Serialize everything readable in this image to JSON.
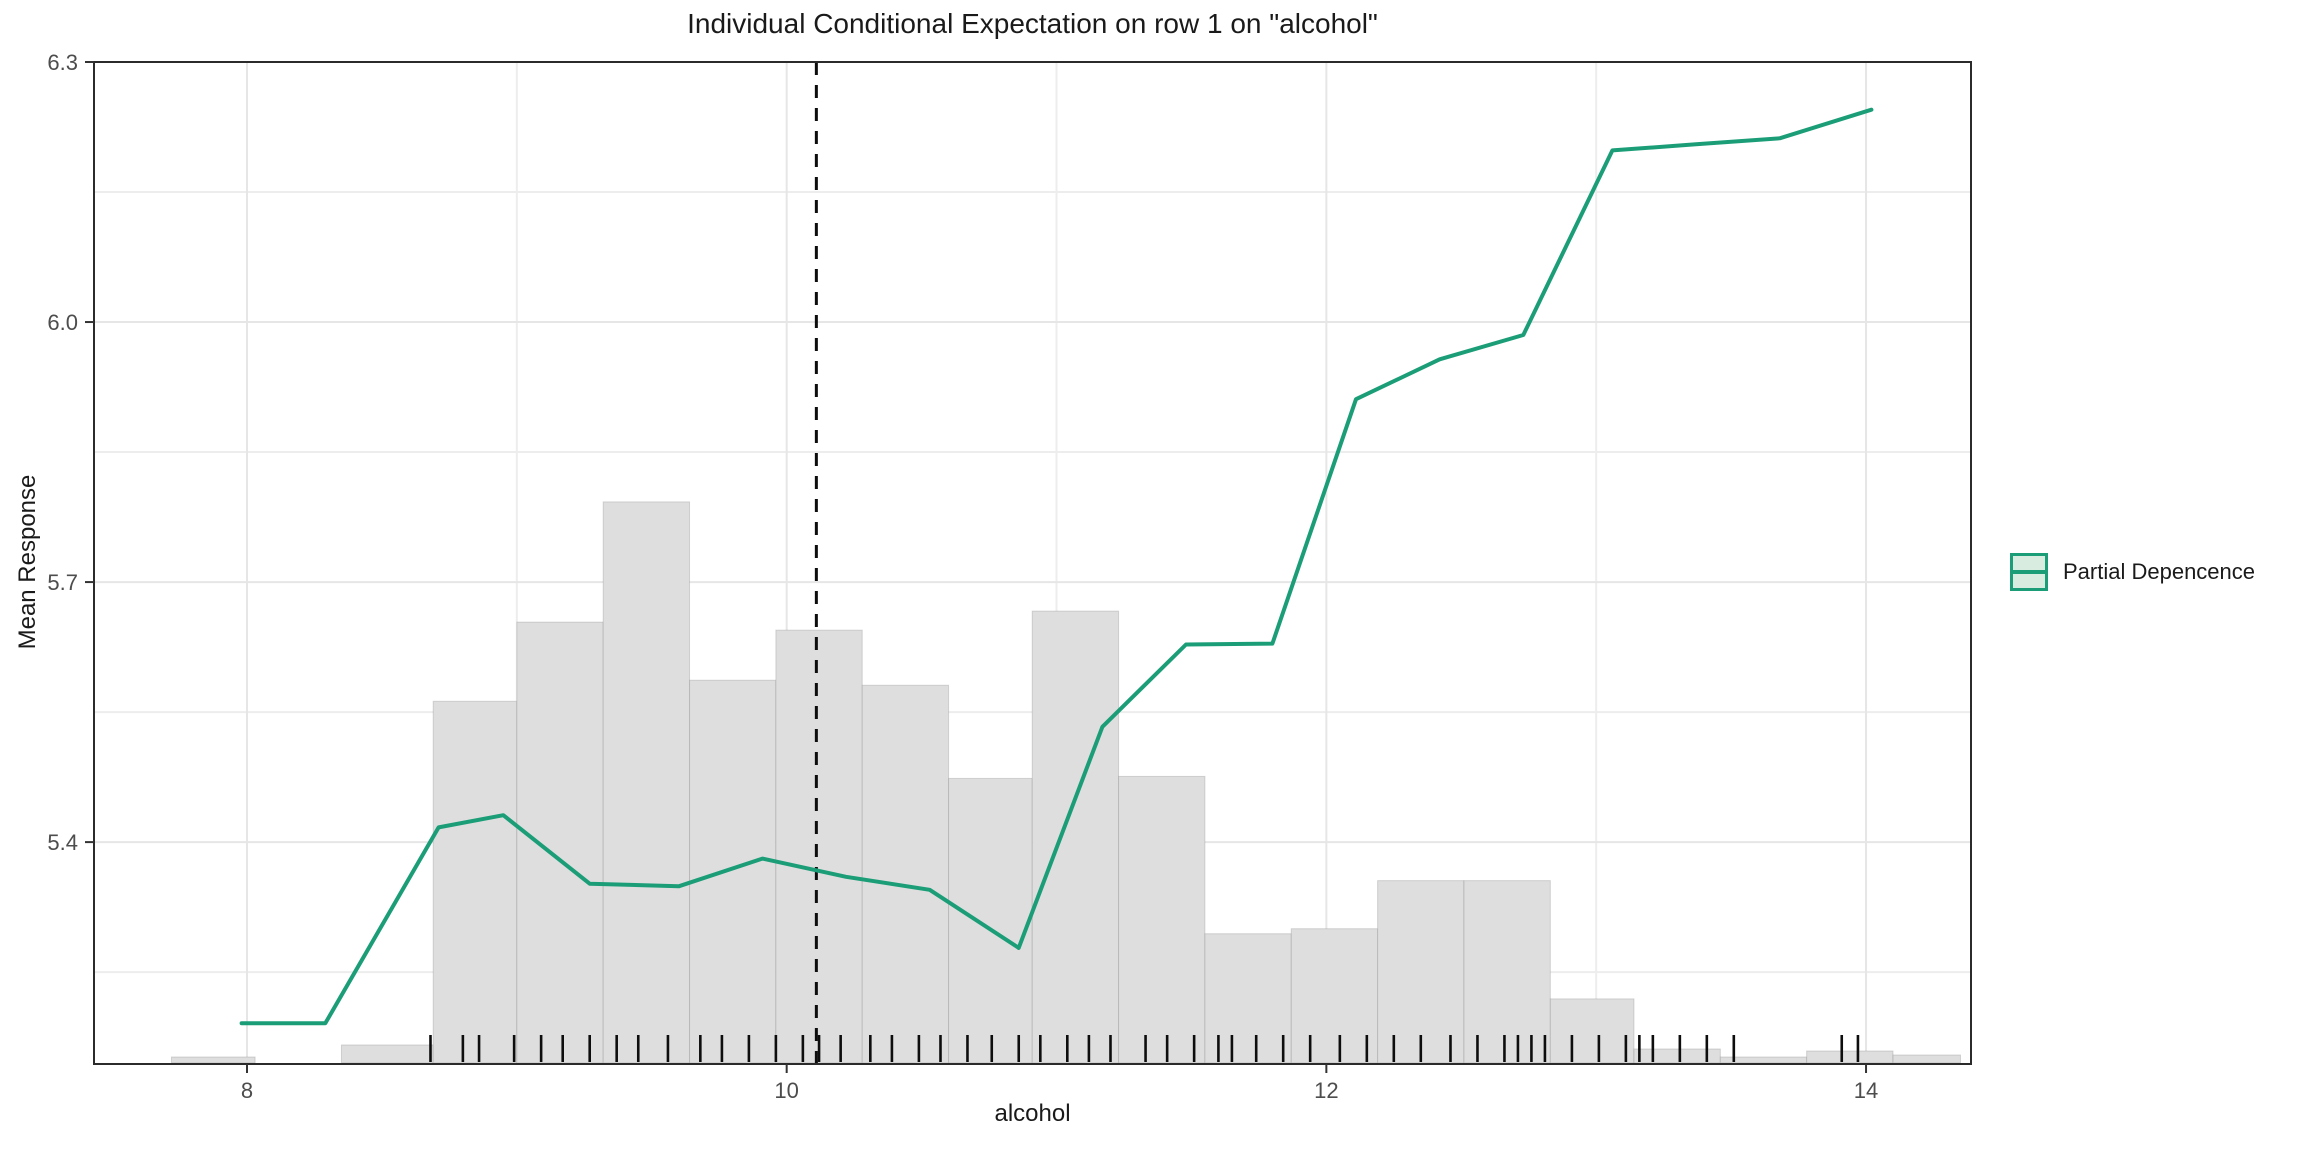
{
  "title": "Individual Conditional Expectation on row 1 on \"alcohol\"",
  "legend": {
    "label": "Partial Depencence"
  },
  "colors": {
    "line_green": "#1b9e77",
    "legend_fill": "#d8ecdf",
    "hist_fill": "#dedede",
    "hist_border": "rgba(110,110,110,0.25)",
    "grid_major": "#e6e6e6",
    "grid_minor": "#ededed",
    "panel_border": "#2b2b2b",
    "tick_label": "#4d4d4d",
    "vline": "#0d0d0d",
    "rug": "#0d0d0d"
  },
  "chart_data": {
    "type": "line",
    "title": "Individual Conditional Expectation on row 1 on \"alcohol\"",
    "xlabel": "alcohol",
    "ylabel": "Mean Response",
    "xlim": [
      7.433,
      14.389
    ],
    "ylim": [
      5.144,
      6.3
    ],
    "grid": true,
    "legend_position": "right",
    "x_ticks": {
      "major": [
        8,
        10,
        12,
        14
      ],
      "labels": [
        "8",
        "10",
        "12",
        "14"
      ],
      "minor": [
        9,
        11,
        13
      ]
    },
    "y_ticks": {
      "major": [
        6.3,
        6.0,
        5.7,
        5.4
      ],
      "labels": [
        "6.3",
        "6.0",
        "5.7",
        "5.4"
      ],
      "minor": [
        6.15,
        5.85,
        5.55,
        5.25
      ]
    },
    "vline": {
      "x": 10.11,
      "style": "dashed"
    },
    "series": [
      {
        "name": "Partial Depencence",
        "type": "line",
        "points": [
          [
            7.98,
            5.191
          ],
          [
            8.29,
            5.191
          ],
          [
            8.71,
            5.417
          ],
          [
            8.95,
            5.431
          ],
          [
            9.27,
            5.352
          ],
          [
            9.6,
            5.349
          ],
          [
            9.91,
            5.381
          ],
          [
            10.22,
            5.36
          ],
          [
            10.53,
            5.345
          ],
          [
            10.86,
            5.278
          ],
          [
            11.17,
            5.533
          ],
          [
            11.48,
            5.628
          ],
          [
            11.8,
            5.629
          ],
          [
            12.11,
            5.911
          ],
          [
            12.42,
            5.957
          ],
          [
            12.73,
            5.985
          ],
          [
            13.06,
            6.198
          ],
          [
            13.37,
            6.205
          ],
          [
            13.68,
            6.212
          ],
          [
            14.02,
            6.245
          ]
        ]
      }
    ],
    "histogram": {
      "note": "background frequency histogram of alcohol; heights as fraction of panel height",
      "bins": [
        {
          "x0": 7.72,
          "x1": 8.03,
          "h": 0.006
        },
        {
          "x0": 8.35,
          "x1": 8.69,
          "h": 0.018
        },
        {
          "x0": 8.69,
          "x1": 9.0,
          "h": 0.361
        },
        {
          "x0": 9.0,
          "x1": 9.32,
          "h": 0.44
        },
        {
          "x0": 9.32,
          "x1": 9.64,
          "h": 0.56
        },
        {
          "x0": 9.64,
          "x1": 9.96,
          "h": 0.382
        },
        {
          "x0": 9.96,
          "x1": 10.28,
          "h": 0.432
        },
        {
          "x0": 10.28,
          "x1": 10.6,
          "h": 0.377
        },
        {
          "x0": 10.6,
          "x1": 10.91,
          "h": 0.284
        },
        {
          "x0": 10.91,
          "x1": 11.23,
          "h": 0.451
        },
        {
          "x0": 11.23,
          "x1": 11.55,
          "h": 0.286
        },
        {
          "x0": 11.55,
          "x1": 11.87,
          "h": 0.129
        },
        {
          "x0": 11.87,
          "x1": 12.19,
          "h": 0.134
        },
        {
          "x0": 12.19,
          "x1": 12.51,
          "h": 0.182
        },
        {
          "x0": 12.51,
          "x1": 12.83,
          "h": 0.182
        },
        {
          "x0": 12.83,
          "x1": 13.14,
          "h": 0.064
        },
        {
          "x0": 13.14,
          "x1": 13.46,
          "h": 0.014
        },
        {
          "x0": 13.46,
          "x1": 13.78,
          "h": 0.006
        },
        {
          "x0": 13.78,
          "x1": 14.1,
          "h": 0.012
        },
        {
          "x0": 14.1,
          "x1": 14.35,
          "h": 0.008
        }
      ]
    },
    "rug": {
      "x": [
        8.68,
        8.8,
        8.86,
        8.99,
        9.09,
        9.17,
        9.27,
        9.37,
        9.45,
        9.56,
        9.68,
        9.76,
        9.86,
        9.96,
        10.06,
        10.12,
        10.2,
        10.31,
        10.39,
        10.49,
        10.57,
        10.67,
        10.76,
        10.86,
        10.94,
        11.04,
        11.12,
        11.2,
        11.33,
        11.41,
        11.51,
        11.6,
        11.65,
        11.74,
        11.84,
        11.94,
        12.05,
        12.15,
        12.25,
        12.35,
        12.46,
        12.56,
        12.66,
        12.71,
        12.76,
        12.81,
        12.91,
        13.01,
        13.11,
        13.16,
        13.21,
        13.31,
        13.41,
        13.51,
        13.91,
        13.97
      ]
    }
  }
}
